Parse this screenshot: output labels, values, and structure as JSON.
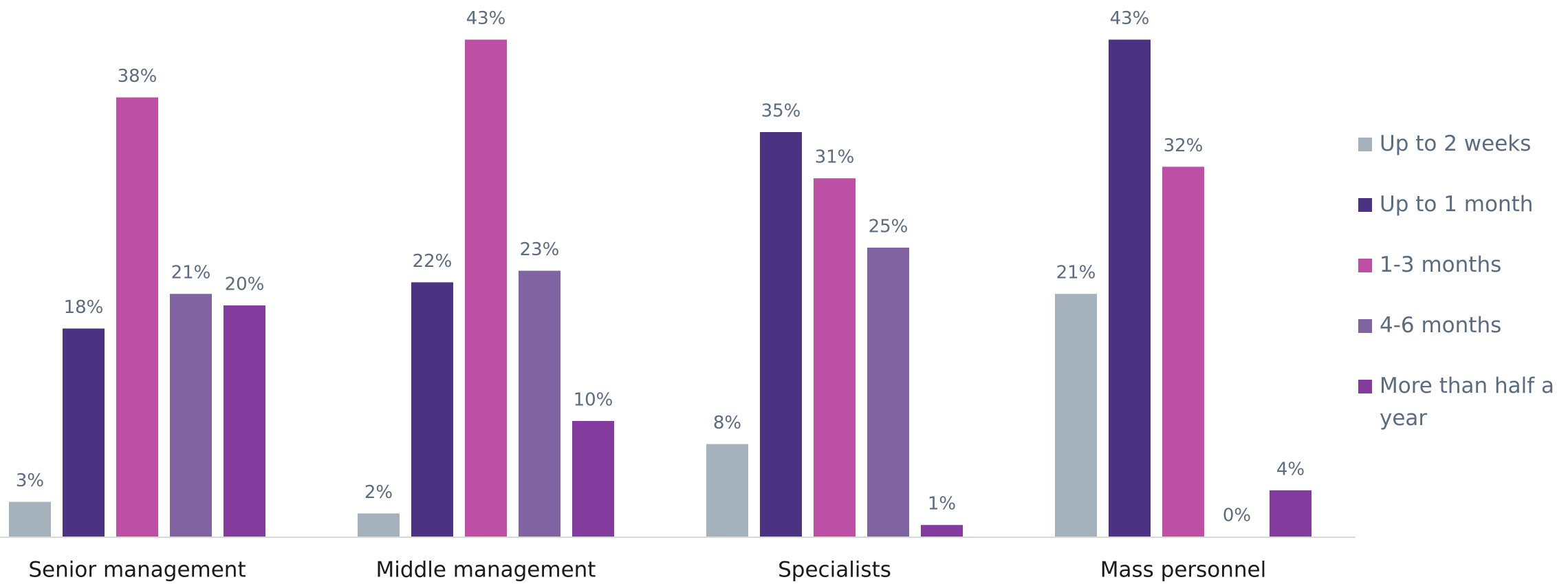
{
  "chart_data": {
    "type": "bar",
    "categories": [
      "Senior management",
      "Middle management",
      "Specialists",
      "Mass personnel"
    ],
    "series": [
      {
        "name": "Up to 2 weeks",
        "color": "#a5b1bd",
        "values": [
          3,
          2,
          8,
          21
        ],
        "value_labels": [
          "3%",
          "2%",
          "8%",
          "21%"
        ]
      },
      {
        "name": "Up to 1 month",
        "color": "#4b3283",
        "values": [
          18,
          22,
          35,
          43
        ],
        "value_labels": [
          "18%",
          "22%",
          "35%",
          "43%"
        ]
      },
      {
        "name": "1-3 months",
        "color": "#bd4fa5",
        "values": [
          38,
          43,
          31,
          32
        ],
        "value_labels": [
          "38%",
          "43%",
          "31%",
          "32%"
        ]
      },
      {
        "name": "4-6 months",
        "color": "#8064a2",
        "values": [
          21,
          23,
          25,
          0
        ],
        "value_labels": [
          "21%",
          "23%",
          "25%",
          "0%"
        ]
      },
      {
        "name": "More than half a year",
        "color": "#833c9e",
        "values": [
          20,
          10,
          1,
          4
        ],
        "value_labels": [
          "20%",
          "10%",
          "1%",
          "4%"
        ]
      }
    ],
    "legend": "right"
  }
}
